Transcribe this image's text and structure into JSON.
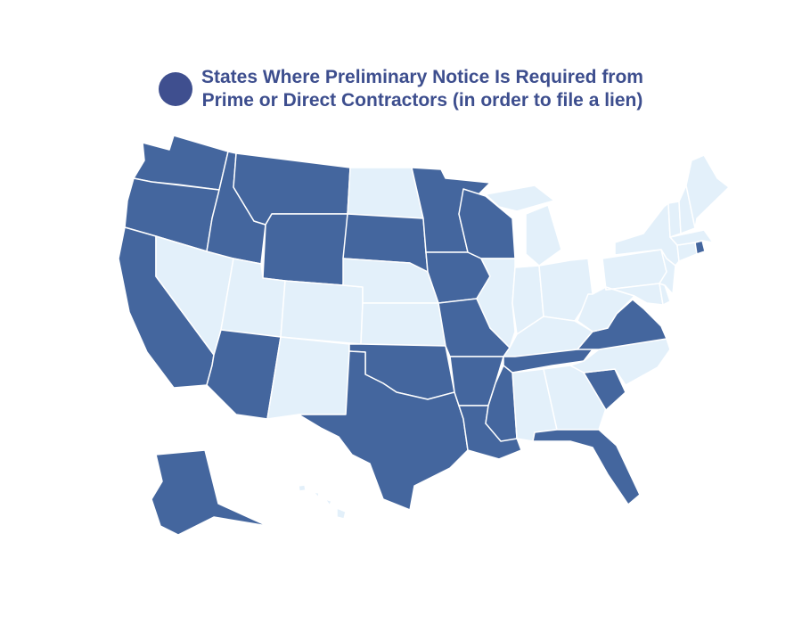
{
  "legend": {
    "label": "States Where Preliminary Notice Is Required from\nPrime or Direct Contractors (in order to file a lien)",
    "color": "#3f4f8f"
  },
  "colors": {
    "required": "#44669e",
    "not_required": "#e3f0fa"
  },
  "states": [
    {
      "code": "WA",
      "required": true
    },
    {
      "code": "OR",
      "required": true
    },
    {
      "code": "CA",
      "required": true
    },
    {
      "code": "NV",
      "required": false
    },
    {
      "code": "ID",
      "required": true
    },
    {
      "code": "MT",
      "required": true
    },
    {
      "code": "WY",
      "required": true
    },
    {
      "code": "UT",
      "required": false
    },
    {
      "code": "AZ",
      "required": true
    },
    {
      "code": "CO",
      "required": false
    },
    {
      "code": "NM",
      "required": false
    },
    {
      "code": "ND",
      "required": false
    },
    {
      "code": "SD",
      "required": true
    },
    {
      "code": "NE",
      "required": false
    },
    {
      "code": "KS",
      "required": false
    },
    {
      "code": "OK",
      "required": true
    },
    {
      "code": "TX",
      "required": true
    },
    {
      "code": "MN",
      "required": true
    },
    {
      "code": "IA",
      "required": true
    },
    {
      "code": "MO",
      "required": true
    },
    {
      "code": "AR",
      "required": true
    },
    {
      "code": "LA",
      "required": true
    },
    {
      "code": "MS",
      "required": true
    },
    {
      "code": "WI",
      "required": true
    },
    {
      "code": "IL",
      "required": false
    },
    {
      "code": "MI",
      "required": false
    },
    {
      "code": "IN",
      "required": false
    },
    {
      "code": "OH",
      "required": false
    },
    {
      "code": "KY",
      "required": false
    },
    {
      "code": "TN",
      "required": true
    },
    {
      "code": "AL",
      "required": false
    },
    {
      "code": "GA",
      "required": false
    },
    {
      "code": "FL",
      "required": true
    },
    {
      "code": "SC",
      "required": true
    },
    {
      "code": "NC",
      "required": false
    },
    {
      "code": "VA",
      "required": true
    },
    {
      "code": "WV",
      "required": false
    },
    {
      "code": "PA",
      "required": false
    },
    {
      "code": "NY",
      "required": false
    },
    {
      "code": "MD",
      "required": false
    },
    {
      "code": "DE",
      "required": false
    },
    {
      "code": "NJ",
      "required": false
    },
    {
      "code": "CT",
      "required": false
    },
    {
      "code": "RI",
      "required": true
    },
    {
      "code": "MA",
      "required": false
    },
    {
      "code": "VT",
      "required": false
    },
    {
      "code": "NH",
      "required": false
    },
    {
      "code": "ME",
      "required": false
    },
    {
      "code": "AK",
      "required": true
    },
    {
      "code": "HI",
      "required": false
    }
  ]
}
